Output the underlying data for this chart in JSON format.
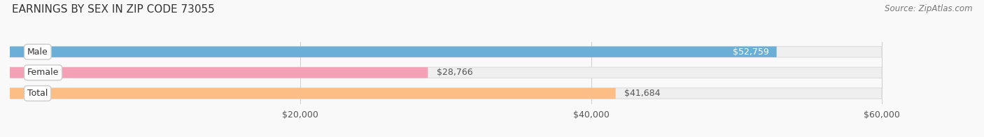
{
  "title": "EARNINGS BY SEX IN ZIP CODE 73055",
  "source": "Source: ZipAtlas.com",
  "categories": [
    "Male",
    "Female",
    "Total"
  ],
  "values": [
    52759,
    28766,
    41684
  ],
  "bar_colors": [
    "#6baed6",
    "#f4a0b5",
    "#fdbe85"
  ],
  "label_values": [
    "$52,759",
    "$28,766",
    "$41,684"
  ],
  "label_inside": [
    true,
    false,
    false
  ],
  "label_inside_colors": [
    "#ffffff",
    "#555555",
    "#555555"
  ],
  "xlim": [
    0,
    65000
  ],
  "data_max": 60000,
  "xticks": [
    20000,
    40000,
    60000
  ],
  "xticklabels": [
    "$20,000",
    "$40,000",
    "$60,000"
  ],
  "bar_height": 0.52,
  "track_color": "#efefef",
  "track_border_color": "#dddddd",
  "figsize": [
    14.06,
    1.96
  ],
  "dpi": 100,
  "background_color": "#f9f9f9",
  "title_fontsize": 11,
  "tick_fontsize": 9,
  "label_fontsize": 9,
  "category_fontsize": 9,
  "source_fontsize": 8.5
}
